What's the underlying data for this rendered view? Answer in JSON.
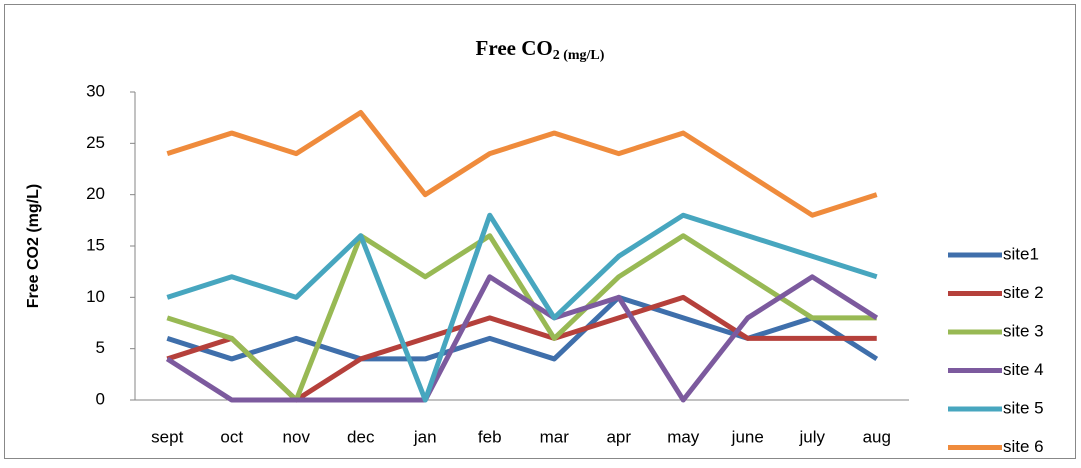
{
  "chart_data": {
    "type": "line",
    "title": "Free CO",
    "title_subscript": "2 (mg/L)",
    "y_label": "Free CO2 (mg/L)",
    "categories": [
      "sept",
      "oct",
      "nov",
      "dec",
      "jan",
      "feb",
      "mar",
      "apr",
      "may",
      "june",
      "july",
      "aug"
    ],
    "series": [
      {
        "name": "site1",
        "color": "#3f6fab",
        "values": [
          6,
          4,
          6,
          4,
          4,
          6,
          4,
          10,
          8,
          6,
          8,
          4
        ]
      },
      {
        "name": "site 2",
        "color": "#b5403b",
        "values": [
          4,
          6,
          0,
          4,
          6,
          8,
          6,
          8,
          10,
          6,
          6,
          6
        ]
      },
      {
        "name": "site 3",
        "color": "#98b954",
        "values": [
          8,
          6,
          0,
          16,
          12,
          16,
          6,
          12,
          16,
          12,
          8,
          8
        ]
      },
      {
        "name": "site 4",
        "color": "#7c5a9e",
        "values": [
          4,
          0,
          0,
          0,
          0,
          12,
          8,
          10,
          0,
          8,
          12,
          8
        ]
      },
      {
        "name": "site 5",
        "color": "#47a6bf",
        "values": [
          10,
          12,
          10,
          16,
          0,
          18,
          8,
          14,
          18,
          16,
          14,
          12
        ]
      },
      {
        "name": "site 6",
        "color": "#ef8b3c",
        "values": [
          24,
          26,
          24,
          28,
          20,
          24,
          26,
          24,
          26,
          22,
          18,
          20
        ]
      }
    ],
    "ylim": [
      0,
      30
    ],
    "yticks": [
      0,
      5,
      10,
      15,
      20,
      25,
      30
    ],
    "legend": "right"
  }
}
